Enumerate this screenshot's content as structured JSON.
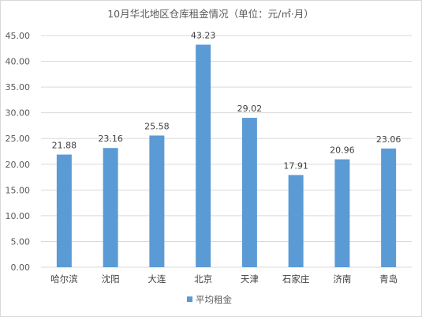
{
  "chart_data": {
    "type": "bar",
    "title": "10月华北地区仓库租金情况（单位：元/㎡·月）",
    "categories": [
      "哈尔滨",
      "沈阳",
      "大连",
      "北京",
      "天津",
      "石家庄",
      "济南",
      "青岛"
    ],
    "series": [
      {
        "name": "平均租金",
        "values": [
          21.88,
          23.16,
          25.58,
          43.23,
          29.02,
          17.91,
          20.96,
          23.06
        ]
      }
    ],
    "value_labels": [
      "21.88",
      "23.16",
      "25.58",
      "43.23",
      "29.02",
      "17.91",
      "20.96",
      "23.06"
    ],
    "yticks": [
      "0.00",
      "5.00",
      "10.00",
      "15.00",
      "20.00",
      "25.00",
      "30.00",
      "35.00",
      "40.00",
      "45.00"
    ],
    "ylim": [
      0,
      45
    ],
    "grid": true,
    "legend_position": "bottom",
    "colors": {
      "bar": "#5b9bd5",
      "grid": "#d9d9d9",
      "text": "#595959"
    }
  }
}
